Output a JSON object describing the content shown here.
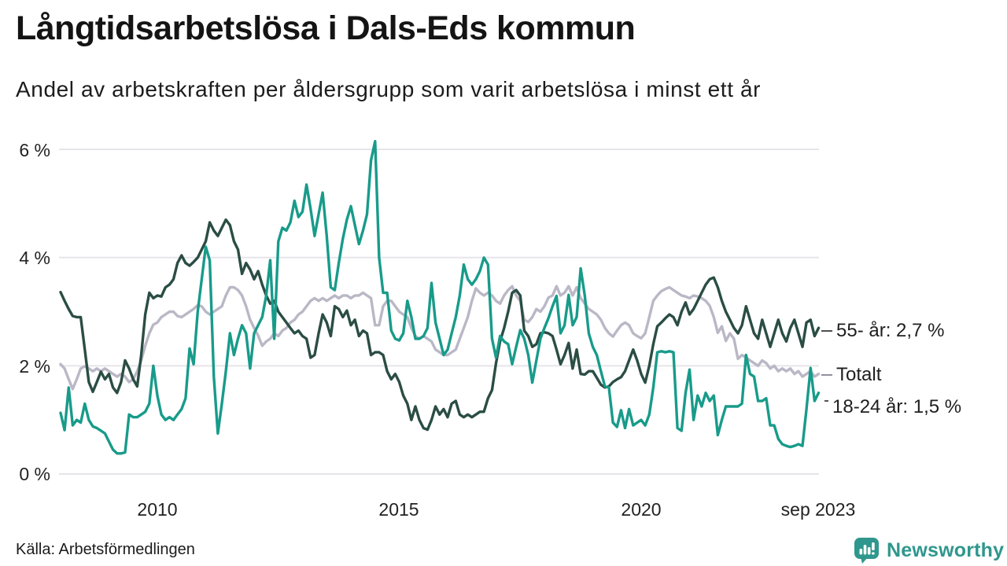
{
  "header": {
    "title": "Långtidsarbetslösa i Dals-Eds kommun",
    "subtitle": "Andel av arbetskraften per åldersgrupp som varit arbetslösa i minst ett år"
  },
  "footer": {
    "source": "Källa: Arbetsförmedlingen",
    "brand": "Newsworthy"
  },
  "colors": {
    "age55": "#2a4d44",
    "total": "#bab7c6",
    "age1824": "#189b8a",
    "grid": "#e6e4ea",
    "brand": "#2f978d"
  },
  "annotations": [
    {
      "label": "55- år: 2,7 %"
    },
    {
      "label": "Totalt"
    },
    {
      "label": "18-24 år: 1,5 %"
    }
  ],
  "chart_data": {
    "type": "line",
    "title": "Långtidsarbetslösa i Dals-Eds kommun",
    "subtitle": "Andel av arbetskraften per åldersgrupp som varit arbetslösa i minst ett år",
    "x_start": "2008-01",
    "x_end": "2023-09",
    "x_interval": "monthly",
    "ylim": [
      0,
      6.2
    ],
    "grid": "horizontal",
    "legend_position": "end-of-line-labels",
    "y_ticks": [
      {
        "label": "6 %",
        "value": 6
      },
      {
        "label": "4 %",
        "value": 4
      },
      {
        "label": "2 %",
        "value": 2
      },
      {
        "label": "0 %",
        "value": 0
      }
    ],
    "x_ticks": [
      {
        "label": "2010",
        "year": 2010
      },
      {
        "label": "2015",
        "year": 2015
      },
      {
        "label": "2020",
        "year": 2020
      },
      {
        "label": "sep 2023",
        "year": 2023.667
      }
    ],
    "series": [
      {
        "name": "Totalt",
        "color": "#bab7c6",
        "end_value": null,
        "values": [
          2.03,
          1.95,
          1.75,
          1.57,
          1.75,
          1.95,
          1.99,
          1.95,
          1.9,
          1.95,
          1.9,
          1.95,
          1.9,
          1.85,
          1.8,
          1.85,
          1.8,
          1.7,
          1.75,
          1.9,
          2.1,
          2.37,
          2.6,
          2.76,
          2.8,
          2.9,
          2.95,
          3.0,
          3.0,
          2.92,
          2.9,
          2.95,
          3.0,
          3.05,
          3.12,
          3.1,
          3.0,
          2.95,
          3.0,
          3.05,
          3.1,
          3.3,
          3.45,
          3.45,
          3.4,
          3.3,
          3.1,
          2.85,
          2.7,
          2.56,
          2.37,
          2.45,
          2.5,
          2.6,
          2.55,
          2.65,
          2.7,
          2.8,
          2.85,
          2.95,
          3.0,
          3.1,
          3.2,
          3.25,
          3.2,
          3.25,
          3.2,
          3.25,
          3.3,
          3.25,
          3.3,
          3.3,
          3.25,
          3.3,
          3.3,
          3.35,
          3.3,
          3.25,
          2.75,
          2.75,
          3.1,
          3.2,
          3.2,
          3.1,
          3.0,
          2.95,
          2.9,
          2.7,
          2.55,
          2.5,
          2.55,
          2.5,
          2.45,
          2.3,
          2.25,
          2.2,
          2.2,
          2.25,
          2.3,
          2.5,
          2.7,
          2.9,
          3.2,
          3.43,
          3.35,
          3.3,
          3.35,
          3.3,
          3.2,
          3.15,
          3.3,
          3.4,
          3.47,
          3.3,
          3.2,
          2.85,
          2.81,
          2.9,
          3.05,
          3.0,
          3.1,
          3.26,
          3.3,
          3.47,
          3.3,
          3.35,
          3.47,
          3.3,
          3.45,
          3.25,
          3.15,
          3.05,
          3.0,
          2.95,
          2.85,
          2.7,
          2.6,
          2.54,
          2.65,
          2.75,
          2.8,
          2.75,
          2.6,
          2.55,
          2.51,
          2.6,
          2.9,
          3.2,
          3.3,
          3.38,
          3.42,
          3.45,
          3.4,
          3.35,
          3.3,
          3.28,
          3.25,
          3.3,
          3.28,
          3.25,
          3.2,
          3.11,
          2.9,
          2.61,
          2.73,
          2.46,
          2.6,
          2.5,
          2.13,
          2.2,
          2.15,
          2.1,
          2.05,
          2.0,
          2.1,
          2.05,
          1.95,
          2.0,
          1.9,
          1.95,
          1.9,
          1.95,
          1.85,
          1.9,
          1.8,
          1.85,
          1.9,
          1.8,
          1.85
        ]
      },
      {
        "name": "55- år",
        "color": "#2a4d44",
        "end_value": 2.7,
        "values": [
          3.36,
          3.2,
          3.05,
          2.92,
          2.9,
          2.9,
          2.3,
          1.7,
          1.52,
          1.7,
          1.89,
          1.75,
          1.85,
          1.6,
          1.5,
          1.7,
          2.1,
          1.95,
          1.75,
          1.62,
          2.2,
          2.95,
          3.35,
          3.25,
          3.3,
          3.28,
          3.45,
          3.5,
          3.6,
          3.9,
          4.04,
          3.9,
          3.85,
          3.92,
          4.0,
          4.15,
          4.3,
          4.65,
          4.5,
          4.4,
          4.55,
          4.7,
          4.6,
          4.3,
          4.15,
          3.7,
          3.9,
          3.78,
          3.6,
          3.75,
          3.5,
          3.3,
          3.15,
          3.2,
          3.0,
          2.9,
          2.8,
          2.7,
          2.6,
          2.65,
          2.55,
          2.5,
          2.15,
          2.2,
          2.6,
          2.95,
          2.8,
          2.55,
          3.1,
          3.05,
          2.9,
          3.02,
          2.75,
          2.85,
          2.55,
          2.65,
          2.6,
          2.2,
          2.25,
          2.25,
          2.2,
          1.9,
          1.75,
          1.85,
          1.7,
          1.45,
          1.3,
          1.0,
          1.25,
          1.0,
          0.85,
          0.82,
          1.0,
          1.25,
          1.1,
          1.2,
          1.05,
          1.3,
          1.35,
          1.1,
          1.05,
          1.1,
          1.05,
          1.1,
          1.15,
          1.15,
          1.4,
          1.55,
          2.05,
          2.45,
          2.7,
          3.0,
          3.35,
          3.4,
          3.3,
          2.65,
          2.55,
          2.35,
          2.4,
          2.6,
          2.62,
          2.6,
          2.55,
          2.3,
          2.03,
          2.2,
          2.42,
          1.95,
          2.3,
          1.85,
          1.84,
          1.9,
          1.9,
          1.78,
          1.65,
          1.6,
          1.62,
          1.7,
          1.75,
          1.79,
          1.9,
          2.1,
          2.3,
          2.1,
          1.85,
          1.69,
          2.0,
          2.4,
          2.73,
          2.8,
          2.88,
          2.95,
          2.9,
          2.75,
          3.0,
          3.17,
          2.95,
          3.05,
          3.2,
          3.35,
          3.5,
          3.6,
          3.63,
          3.45,
          3.2,
          3.0,
          2.85,
          2.7,
          2.6,
          2.75,
          3.1,
          2.85,
          2.6,
          2.5,
          2.85,
          2.6,
          2.35,
          2.6,
          2.85,
          2.6,
          2.45,
          2.7,
          2.85,
          2.6,
          2.35,
          2.8,
          2.85,
          2.55,
          2.7
        ]
      },
      {
        "name": "18-24 år",
        "color": "#189b8a",
        "end_value": 1.5,
        "values": [
          1.13,
          0.81,
          1.6,
          0.9,
          1.0,
          0.95,
          1.3,
          1.0,
          0.88,
          0.85,
          0.8,
          0.75,
          0.6,
          0.45,
          0.38,
          0.38,
          0.4,
          1.1,
          1.05,
          1.05,
          1.1,
          1.15,
          1.3,
          2.0,
          1.45,
          1.1,
          1.0,
          1.05,
          1.0,
          1.1,
          1.2,
          1.4,
          2.32,
          2.03,
          3.0,
          3.6,
          4.2,
          3.95,
          1.8,
          0.75,
          1.3,
          1.9,
          2.6,
          2.2,
          2.5,
          2.75,
          2.6,
          1.95,
          2.6,
          2.75,
          2.9,
          3.3,
          3.95,
          2.5,
          4.3,
          4.55,
          4.5,
          4.65,
          5.05,
          4.75,
          4.85,
          5.35,
          4.9,
          4.4,
          4.8,
          5.2,
          4.4,
          3.45,
          3.4,
          3.9,
          4.35,
          4.7,
          4.95,
          4.6,
          4.25,
          4.5,
          4.8,
          5.8,
          6.15,
          4.0,
          3.35,
          3.35,
          2.65,
          2.5,
          2.47,
          2.6,
          3.2,
          2.9,
          2.5,
          2.5,
          2.55,
          2.7,
          3.53,
          2.8,
          2.5,
          2.2,
          2.3,
          2.6,
          2.9,
          3.3,
          3.87,
          3.6,
          3.5,
          3.6,
          3.75,
          4.0,
          3.87,
          2.5,
          2.15,
          2.55,
          2.45,
          2.4,
          2.03,
          2.35,
          2.66,
          2.5,
          2.2,
          1.69,
          2.1,
          2.5,
          2.7,
          2.88,
          3.1,
          3.29,
          2.6,
          2.75,
          3.31,
          2.75,
          2.9,
          3.8,
          3.3,
          2.6,
          2.35,
          2.2,
          1.9,
          1.62,
          1.6,
          0.95,
          0.87,
          1.18,
          0.85,
          1.2,
          0.9,
          0.95,
          1.0,
          0.9,
          1.1,
          1.6,
          2.25,
          2.27,
          2.25,
          2.27,
          2.25,
          0.85,
          0.8,
          1.5,
          1.93,
          1.0,
          1.45,
          1.25,
          1.5,
          1.35,
          1.45,
          0.72,
          1.0,
          1.25,
          1.25,
          1.25,
          1.25,
          1.3,
          2.2,
          1.85,
          1.8,
          1.35,
          1.35,
          1.4,
          0.9,
          0.9,
          0.65,
          0.55,
          0.52,
          0.5,
          0.52,
          0.55,
          0.52,
          1.2,
          1.96,
          1.35,
          1.5
        ]
      }
    ]
  }
}
